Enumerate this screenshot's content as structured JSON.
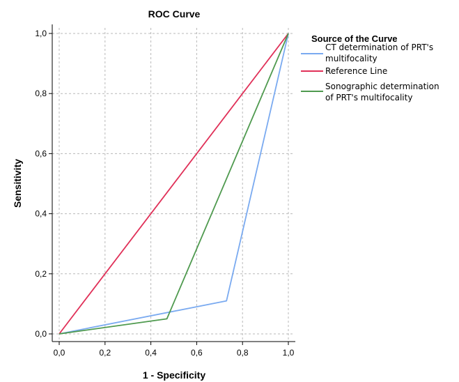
{
  "chart_data": {
    "type": "line",
    "title": "ROC Curve",
    "xlabel": "1 - Specificity",
    "ylabel": "Sensitivity",
    "xlim": [
      0,
      1
    ],
    "ylim": [
      0,
      1
    ],
    "xticks": [
      "0,0",
      "0,2",
      "0,4",
      "0,6",
      "0,8",
      "1,0"
    ],
    "yticks": [
      "0,0",
      "0,2",
      "0,4",
      "0,6",
      "0,8",
      "1,0"
    ],
    "grid": true,
    "legend_placement": "right",
    "legend_title": "Source of the Curve",
    "series": [
      {
        "name": "CT determination of PRT's multifocality",
        "label_lines": [
          "CT determination of PRT's",
          "multifocality"
        ],
        "color": "#7aaaf0",
        "x": [
          0,
          0.73,
          1
        ],
        "y": [
          0,
          0.11,
          1
        ]
      },
      {
        "name": "Reference Line",
        "label_lines": [
          "Reference Line"
        ],
        "color": "#e03058",
        "x": [
          0,
          1
        ],
        "y": [
          0,
          1
        ]
      },
      {
        "name": "Sonographic determination of PRT's multifocality",
        "label_lines": [
          "Sonographic determination",
          "of PRT's multifocality"
        ],
        "color": "#4f9a4f",
        "x": [
          0,
          0.47,
          1
        ],
        "y": [
          0,
          0.05,
          1
        ]
      }
    ]
  }
}
